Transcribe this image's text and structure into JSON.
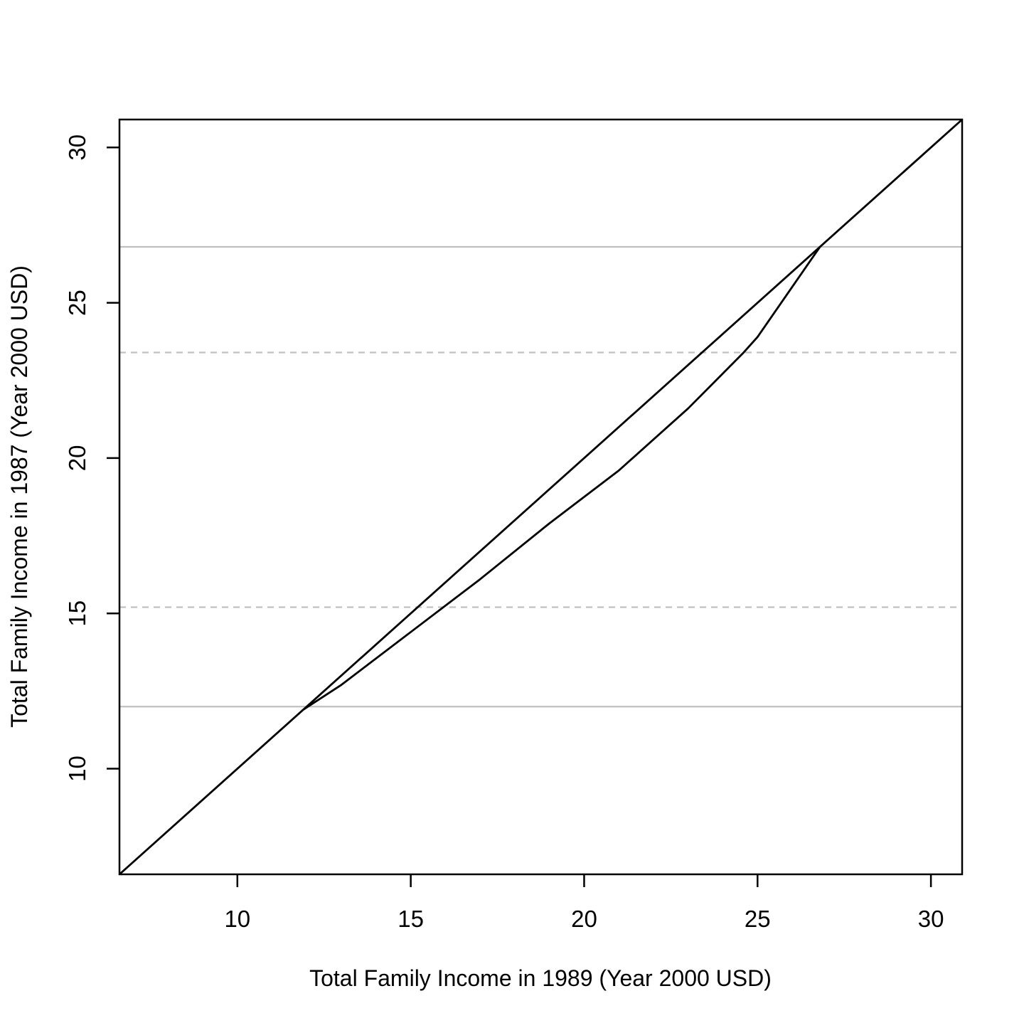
{
  "chart_data": {
    "type": "line",
    "title": "",
    "xlabel": "Total Family Income in 1989 (Year 2000 USD)",
    "ylabel": "Total Family Income in 1987 (Year 2000 USD)",
    "xlim": [
      6.6,
      30.9
    ],
    "ylim": [
      6.6,
      30.9
    ],
    "xticks": [
      10,
      15,
      20,
      25,
      30
    ],
    "yticks": [
      10,
      15,
      20,
      25,
      30
    ],
    "grid": false,
    "legend": "none",
    "series": [
      {
        "type": "line",
        "style": "solid",
        "color": "#000000",
        "points": [
          [
            6.6,
            6.6
          ],
          [
            30.9,
            30.9
          ]
        ]
      },
      {
        "type": "line",
        "style": "solid",
        "color": "#000000",
        "points": [
          [
            11.9,
            11.9
          ],
          [
            13.0,
            12.7
          ],
          [
            15.0,
            14.4
          ],
          [
            17.0,
            16.1
          ],
          [
            19.0,
            17.9
          ],
          [
            21.0,
            19.6
          ],
          [
            23.0,
            21.6
          ],
          [
            24.6,
            23.4
          ],
          [
            25.0,
            23.9
          ],
          [
            26.8,
            26.8
          ]
        ]
      }
    ],
    "hlines": [
      {
        "y": 12.0,
        "style": "solid",
        "color": "#c0c0c0"
      },
      {
        "y": 15.2,
        "style": "dashed",
        "color": "#c0c0c0"
      },
      {
        "y": 23.4,
        "style": "dashed",
        "color": "#c0c0c0"
      },
      {
        "y": 26.8,
        "style": "solid",
        "color": "#c0c0c0"
      }
    ]
  }
}
